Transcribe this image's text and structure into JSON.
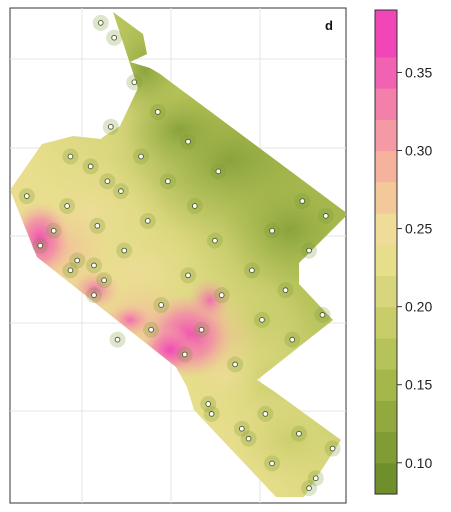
{
  "panel_label": "d",
  "chart_data": {
    "type": "heatmap",
    "title": "",
    "xlabel": "",
    "ylabel": "",
    "grid": true,
    "colorbar": {
      "min": 0.08,
      "max": 0.39,
      "ticks": [
        0.1,
        0.15,
        0.2,
        0.25,
        0.3,
        0.35
      ],
      "tick_labels": [
        "0.10",
        "0.15",
        "0.20",
        "0.25",
        "0.30",
        "0.35"
      ],
      "levels": [
        0.08,
        0.1,
        0.12,
        0.14,
        0.16,
        0.18,
        0.2,
        0.22,
        0.24,
        0.26,
        0.28,
        0.3,
        0.32,
        0.34,
        0.36,
        0.39
      ],
      "colors": [
        "#6e8f2c",
        "#7f9c35",
        "#91a93f",
        "#a4b74b",
        "#b6c25a",
        "#c8cd6a",
        "#d8d67c",
        "#e7de8c",
        "#eedc98",
        "#f3c99a",
        "#f5b39e",
        "#f49aa4",
        "#f380ab",
        "#f262b3",
        "#f046b7"
      ]
    },
    "sample_points": [
      {
        "x": 0.27,
        "y": 0.97
      },
      {
        "x": 0.31,
        "y": 0.94
      },
      {
        "x": 0.37,
        "y": 0.85
      },
      {
        "x": 0.44,
        "y": 0.79
      },
      {
        "x": 0.3,
        "y": 0.76
      },
      {
        "x": 0.53,
        "y": 0.73
      },
      {
        "x": 0.18,
        "y": 0.7
      },
      {
        "x": 0.39,
        "y": 0.7
      },
      {
        "x": 0.24,
        "y": 0.68
      },
      {
        "x": 0.62,
        "y": 0.67
      },
      {
        "x": 0.29,
        "y": 0.65
      },
      {
        "x": 0.47,
        "y": 0.65
      },
      {
        "x": 0.33,
        "y": 0.63
      },
      {
        "x": 0.05,
        "y": 0.62
      },
      {
        "x": 0.17,
        "y": 0.6
      },
      {
        "x": 0.55,
        "y": 0.6
      },
      {
        "x": 0.87,
        "y": 0.61
      },
      {
        "x": 0.41,
        "y": 0.57
      },
      {
        "x": 0.94,
        "y": 0.58
      },
      {
        "x": 0.13,
        "y": 0.55
      },
      {
        "x": 0.26,
        "y": 0.56
      },
      {
        "x": 0.78,
        "y": 0.55
      },
      {
        "x": 0.61,
        "y": 0.53
      },
      {
        "x": 0.09,
        "y": 0.52
      },
      {
        "x": 0.34,
        "y": 0.51
      },
      {
        "x": 0.89,
        "y": 0.51
      },
      {
        "x": 0.2,
        "y": 0.49
      },
      {
        "x": 0.25,
        "y": 0.48
      },
      {
        "x": 0.18,
        "y": 0.47
      },
      {
        "x": 0.53,
        "y": 0.46
      },
      {
        "x": 0.72,
        "y": 0.47
      },
      {
        "x": 0.28,
        "y": 0.45
      },
      {
        "x": 0.82,
        "y": 0.43
      },
      {
        "x": 0.25,
        "y": 0.42
      },
      {
        "x": 0.63,
        "y": 0.42
      },
      {
        "x": 0.45,
        "y": 0.4
      },
      {
        "x": 0.93,
        "y": 0.38
      },
      {
        "x": 0.75,
        "y": 0.37
      },
      {
        "x": 0.57,
        "y": 0.35
      },
      {
        "x": 0.42,
        "y": 0.35
      },
      {
        "x": 0.32,
        "y": 0.33
      },
      {
        "x": 0.84,
        "y": 0.33
      },
      {
        "x": 0.52,
        "y": 0.3
      },
      {
        "x": 0.67,
        "y": 0.28
      },
      {
        "x": 0.59,
        "y": 0.2
      },
      {
        "x": 0.6,
        "y": 0.18
      },
      {
        "x": 0.76,
        "y": 0.18
      },
      {
        "x": 0.69,
        "y": 0.15
      },
      {
        "x": 0.86,
        "y": 0.14
      },
      {
        "x": 0.71,
        "y": 0.13
      },
      {
        "x": 0.96,
        "y": 0.11
      },
      {
        "x": 0.78,
        "y": 0.08
      },
      {
        "x": 0.91,
        "y": 0.05
      },
      {
        "x": 0.89,
        "y": 0.03
      }
    ]
  }
}
